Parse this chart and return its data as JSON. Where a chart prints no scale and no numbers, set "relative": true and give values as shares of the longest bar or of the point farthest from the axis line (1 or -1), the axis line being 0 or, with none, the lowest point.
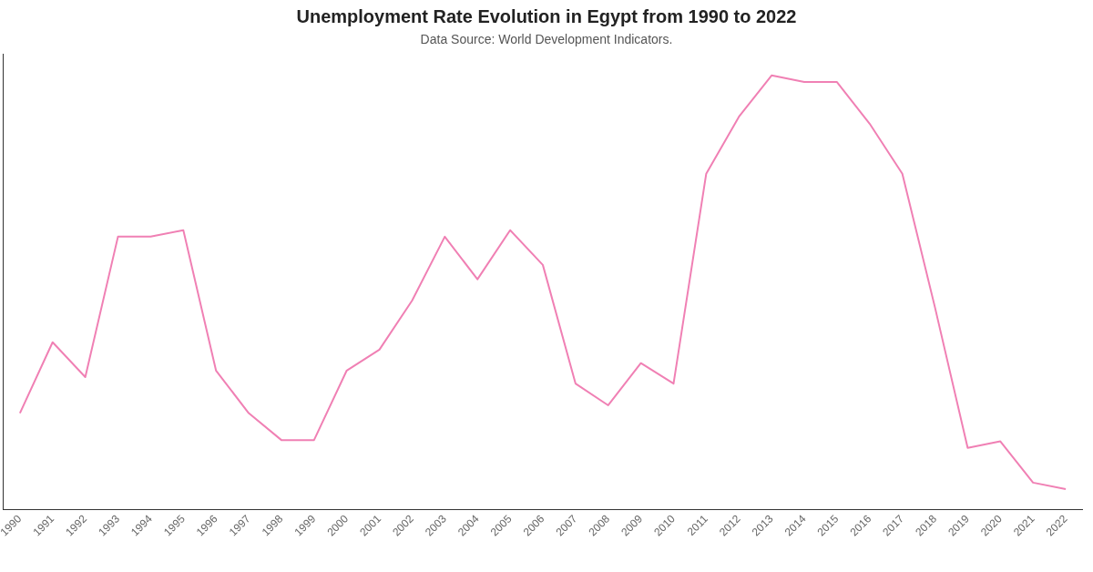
{
  "chart_data": {
    "type": "line",
    "title": "Unemployment Rate Evolution in Egypt from 1990 to 2022",
    "subtitle": "Data Source: World Development Indicators.",
    "relative": true,
    "grid": false,
    "legend": false,
    "marker": "none",
    "line_style": "solid",
    "categories": [
      "1990",
      "1991",
      "1992",
      "1993",
      "1994",
      "1995",
      "1996",
      "1997",
      "1998",
      "1999",
      "2000",
      "2001",
      "2002",
      "2003",
      "2004",
      "2005",
      "2006",
      "2007",
      "2008",
      "2009",
      "2010",
      "2011",
      "2012",
      "2013",
      "2014",
      "2015",
      "2016",
      "2017",
      "2018",
      "2019",
      "2020",
      "2021",
      "2022"
    ],
    "series": [
      {
        "color": "#f080b4",
        "values": [
          0.223,
          0.386,
          0.306,
          0.629,
          0.629,
          0.644,
          0.321,
          0.223,
          0.161,
          0.161,
          0.321,
          0.369,
          0.482,
          0.629,
          0.531,
          0.644,
          0.564,
          0.291,
          0.241,
          0.338,
          0.291,
          0.774,
          0.905,
          1,
          0.985,
          0.985,
          0.889,
          0.774,
          0.466,
          0.143,
          0.158,
          0.063,
          0.048
        ]
      }
    ]
  }
}
